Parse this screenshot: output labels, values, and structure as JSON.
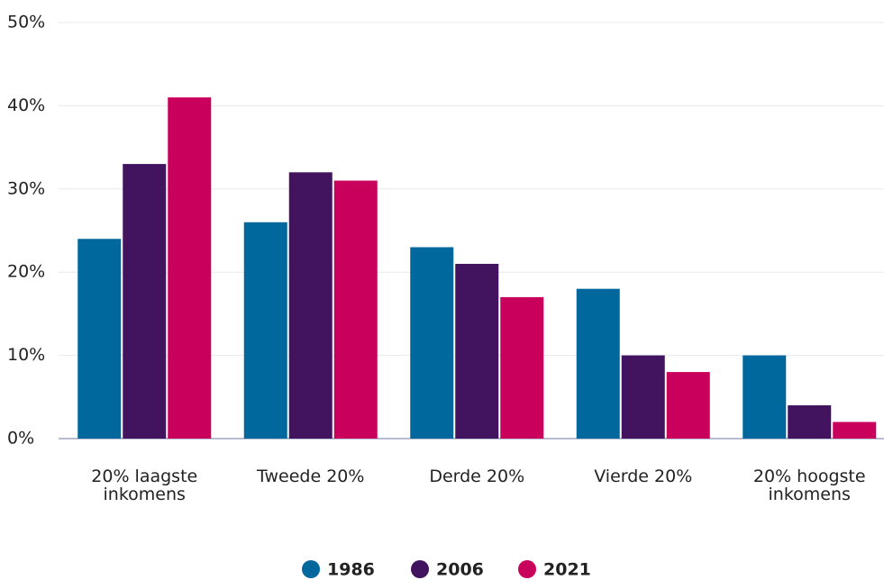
{
  "chart_data": {
    "type": "bar",
    "categories": [
      "20% laagste inkomens",
      "Tweede 20%",
      "Derde 20%",
      "Vierde 20%",
      "20% hoogste inkomens"
    ],
    "series": [
      {
        "name": "1986",
        "color": "#00689c",
        "values": [
          24,
          26,
          23,
          18,
          10
        ]
      },
      {
        "name": "2006",
        "color": "#42145f",
        "values": [
          33,
          32,
          21,
          10,
          4
        ]
      },
      {
        "name": "2021",
        "color": "#c9005c",
        "values": [
          41,
          31,
          17,
          8,
          2
        ]
      }
    ],
    "ylim": [
      0,
      50
    ],
    "yticks": [
      {
        "value": 0,
        "label": "0%"
      },
      {
        "value": 10,
        "label": "10%"
      },
      {
        "value": 20,
        "label": "20%"
      },
      {
        "value": 30,
        "label": "30%"
      },
      {
        "value": 40,
        "label": "40%"
      },
      {
        "value": 50,
        "label": "50%"
      }
    ],
    "grid": true,
    "legend": "bottom"
  }
}
